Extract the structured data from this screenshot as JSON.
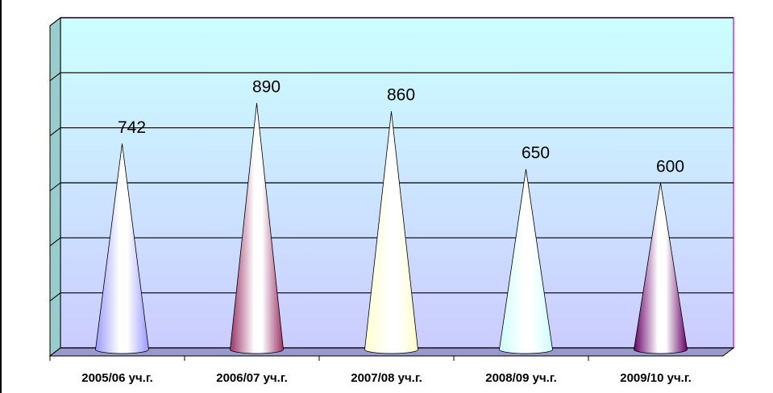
{
  "chart_data": {
    "type": "cone",
    "categories": [
      "2005/06 уч.г.",
      "2006/07 уч.г.",
      "2007/08 уч.г.",
      "2008/09 уч.г.",
      "2009/10 уч.г."
    ],
    "values": [
      742,
      890,
      860,
      650,
      600
    ],
    "colors": [
      "#9999ff",
      "#993366",
      "#ffffcc",
      "#ccffff",
      "#660066"
    ],
    "ylim": [
      0,
      1200
    ],
    "yticks": [
      0,
      200,
      400,
      600,
      800,
      1000,
      1200
    ],
    "grid": true
  }
}
